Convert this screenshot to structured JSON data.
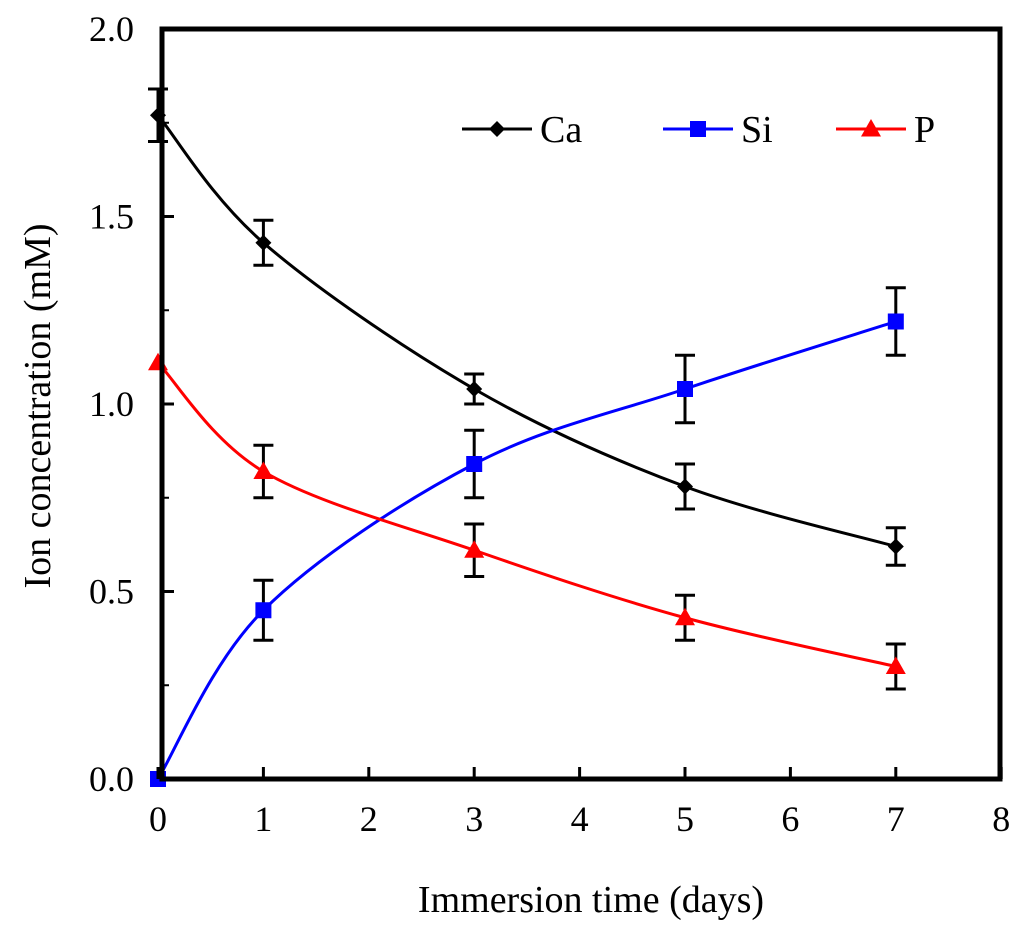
{
  "chart_data": {
    "type": "line",
    "xlabel": "Immersion time (days)",
    "ylabel": "Ion concentration (mM)",
    "xlim": [
      0,
      8
    ],
    "ylim": [
      0,
      2.0
    ],
    "x_ticks": [
      "0",
      "1",
      "2",
      "3",
      "4",
      "5",
      "6",
      "7",
      "8"
    ],
    "y_ticks": [
      "0.0",
      "0.5",
      "1.0",
      "1.5",
      "2.0"
    ],
    "grid": false,
    "legend_position": "top-right",
    "series": [
      {
        "name": "Ca",
        "color": "#000000",
        "marker": "diamond",
        "x": [
          0,
          1,
          3,
          5,
          7
        ],
        "values": [
          1.77,
          1.43,
          1.04,
          0.78,
          0.62
        ],
        "errors": [
          0.07,
          0.06,
          0.04,
          0.06,
          0.05
        ]
      },
      {
        "name": "Si",
        "color": "#0000ff",
        "marker": "square",
        "x": [
          0,
          1,
          3,
          5,
          7
        ],
        "values": [
          0.0,
          0.45,
          0.84,
          1.04,
          1.22
        ],
        "errors": [
          0.0,
          0.08,
          0.09,
          0.09,
          0.09
        ]
      },
      {
        "name": "P",
        "color": "#ff0000",
        "marker": "triangle",
        "x": [
          0,
          1,
          3,
          5,
          7
        ],
        "values": [
          1.11,
          0.82,
          0.61,
          0.43,
          0.3
        ],
        "errors": [
          0.0,
          0.07,
          0.07,
          0.06,
          0.06
        ]
      }
    ]
  }
}
